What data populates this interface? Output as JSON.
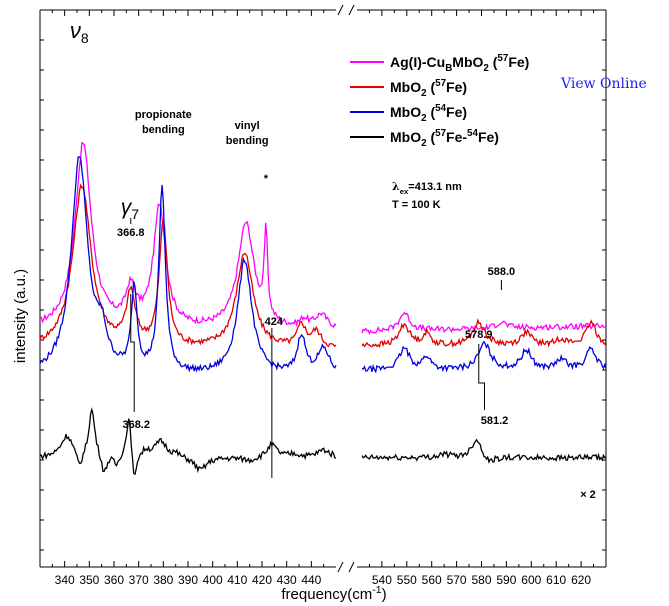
{
  "view_online": "View Online",
  "chart_data": {
    "type": "line",
    "xlabel": "frequency(cm",
    "xlabel_sup": "-1",
    "xlabel_end": ")",
    "ylabel": "intensity (a.u.)",
    "grid": false,
    "legend_position": "top-right",
    "broken_x_axis": true,
    "panels": [
      {
        "xlim": [
          330,
          450
        ],
        "ticks": [
          340,
          350,
          360,
          370,
          380,
          390,
          400,
          410,
          420,
          430,
          440
        ]
      },
      {
        "xlim": [
          530,
          630
        ],
        "ticks": [
          540,
          550,
          560,
          570,
          580,
          590,
          600,
          610,
          620
        ]
      }
    ],
    "legend": [
      {
        "parts": [
          {
            "t": "Ag(I)-Cu"
          },
          {
            "t": "B",
            "sub": true
          },
          {
            "t": "MbO"
          },
          {
            "t": "2",
            "sub": true
          },
          {
            "t": " ("
          },
          {
            "t": "57",
            "sup": true
          },
          {
            "t": "Fe)"
          }
        ],
        "color": "#ff00ff"
      },
      {
        "parts": [
          {
            "t": "MbO"
          },
          {
            "t": "2",
            "sub": true
          },
          {
            "t": " ("
          },
          {
            "t": "57",
            "sup": true
          },
          {
            "t": "Fe)"
          }
        ],
        "color": "#e00000"
      },
      {
        "parts": [
          {
            "t": "MbO"
          },
          {
            "t": "2",
            "sub": true
          },
          {
            "t": " ("
          },
          {
            "t": "54",
            "sup": true
          },
          {
            "t": "Fe)"
          }
        ],
        "color": "#0000e0"
      },
      {
        "parts": [
          {
            "t": "MbO"
          },
          {
            "t": "2",
            "sub": true
          },
          {
            "t": " ("
          },
          {
            "t": "57",
            "sup": true
          },
          {
            "t": "Fe-"
          },
          {
            "t": "54",
            "sup": true
          },
          {
            "t": "Fe)"
          }
        ],
        "color": "#000000"
      }
    ],
    "conditions": {
      "lambda_parts": [
        {
          "t": "λ",
          "greek": true
        },
        {
          "t": "ex",
          "sub": true
        },
        {
          "t": "=413.1 nm"
        }
      ],
      "temperature": "T = 100 K"
    },
    "annotations": {
      "nu8": {
        "symbol": "ν",
        "sub": "8"
      },
      "gamma7": {
        "symbol": "γ",
        "sub": "7"
      },
      "propionate": [
        "propionate",
        "bending"
      ],
      "vinyl": [
        "vinyl",
        "bending"
      ],
      "asterisk": "*",
      "times2": "× 2",
      "peak_labels": [
        {
          "id": "p366",
          "text": "366.8",
          "x": 366.8
        },
        {
          "id": "p368",
          "text": "368.2",
          "x": 368.2
        },
        {
          "id": "p424",
          "text": "424",
          "x": 424
        },
        {
          "id": "p588",
          "text": "588.0",
          "x": 588.0
        },
        {
          "id": "p579",
          "text": "578.9",
          "x": 578.9
        },
        {
          "id": "p581",
          "text": "581.2",
          "x": 581.2
        }
      ]
    },
    "series": [
      {
        "name": "Ag(I)-CuB MbO2 (57Fe)",
        "color": "#ff00ff",
        "offset": 0.78,
        "left": {
          "base": 0.26,
          "peaks": [
            [
              347.5,
              2.9,
              4
            ],
            [
              366.8,
              0.55,
              2.5
            ],
            [
              378.5,
              1.9,
              3
            ],
            [
              413.5,
              1.65,
              4
            ],
            [
              421.6,
              1.35,
              0.8
            ],
            [
              444,
              0.22,
              3
            ],
            [
              437,
              0.12,
              2
            ]
          ]
        },
        "right": {
          "base": 0.25,
          "slope": 0.0009,
          "peaks": [
            [
              549,
              0.28,
              2.5
            ],
            [
              588.0,
              0.1,
              2.5
            ]
          ]
        }
      },
      {
        "name": "MbO2 (57Fe)",
        "color": "#e00000",
        "offset": 0.5,
        "left": {
          "base": 0.24,
          "peaks": [
            [
              347,
              2.55,
              4.5
            ],
            [
              366.8,
              0.8,
              2.2
            ],
            [
              380,
              1.95,
              2
            ],
            [
              413,
              1.5,
              4
            ],
            [
              436,
              0.35,
              2
            ],
            [
              442,
              0.25,
              2.5
            ]
          ]
        },
        "right": {
          "base": 0.3,
          "peaks": [
            [
              549,
              0.33,
              2.5
            ],
            [
              558,
              0.18,
              2
            ],
            [
              578.9,
              0.35,
              3
            ],
            [
              598,
              0.2,
              2.5
            ],
            [
              612,
              0.1,
              2.5
            ],
            [
              624,
              0.35,
              2.5
            ]
          ]
        }
      },
      {
        "name": "MbO2 (54Fe)",
        "color": "#0000e0",
        "offset": 0.12,
        "left": {
          "base": 0.2,
          "peaks": [
            [
              346,
              3.4,
              4
            ],
            [
              355,
              0.5,
              2.5
            ],
            [
              368.2,
              1.3,
              1.4
            ],
            [
              379.5,
              2.9,
              1.6
            ],
            [
              413,
              1.8,
              3.5
            ],
            [
              436,
              0.6,
              2
            ],
            [
              445,
              0.4,
              3
            ]
          ]
        },
        "right": {
          "base": 0.3,
          "peaks": [
            [
              549,
              0.33,
              2.5
            ],
            [
              558,
              0.2,
              2
            ],
            [
              581.2,
              0.4,
              3
            ],
            [
              598,
              0.3,
              2.5
            ],
            [
              612,
              0.15,
              2.5
            ],
            [
              624,
              0.32,
              2.5
            ]
          ]
        }
      },
      {
        "name": "MbO2 (57Fe-54Fe)",
        "color": "#000000",
        "offset": -0.95,
        "left": {
          "base": 0.0,
          "peaks": [
            [
              341,
              0.35,
              3
            ],
            [
              346,
              -0.25,
              1.5
            ],
            [
              351,
              0.75,
              1.5
            ],
            [
              356,
              -0.3,
              1.2
            ],
            [
              361,
              -0.15,
              1.2
            ],
            [
              366,
              0.65,
              1.2
            ],
            [
              368.2,
              -0.5,
              0.9
            ],
            [
              373,
              0.1,
              2
            ],
            [
              379,
              0.25,
              3
            ],
            [
              385,
              0.05,
              2
            ],
            [
              395,
              -0.2,
              3
            ],
            [
              405,
              0.0,
              3
            ],
            [
              415,
              -0.05,
              3
            ],
            [
              424,
              0.2,
              2.5
            ],
            [
              433,
              0.05,
              3
            ],
            [
              445,
              0.12,
              3
            ]
          ]
        },
        "right": {
          "base": 0.0,
          "peaks": [
            [
              565,
              0.05,
              3
            ],
            [
              578,
              0.3,
              2.5
            ],
            [
              583,
              -0.1,
              2.5
            ],
            [
              600,
              0.0,
              3
            ]
          ]
        }
      }
    ]
  }
}
